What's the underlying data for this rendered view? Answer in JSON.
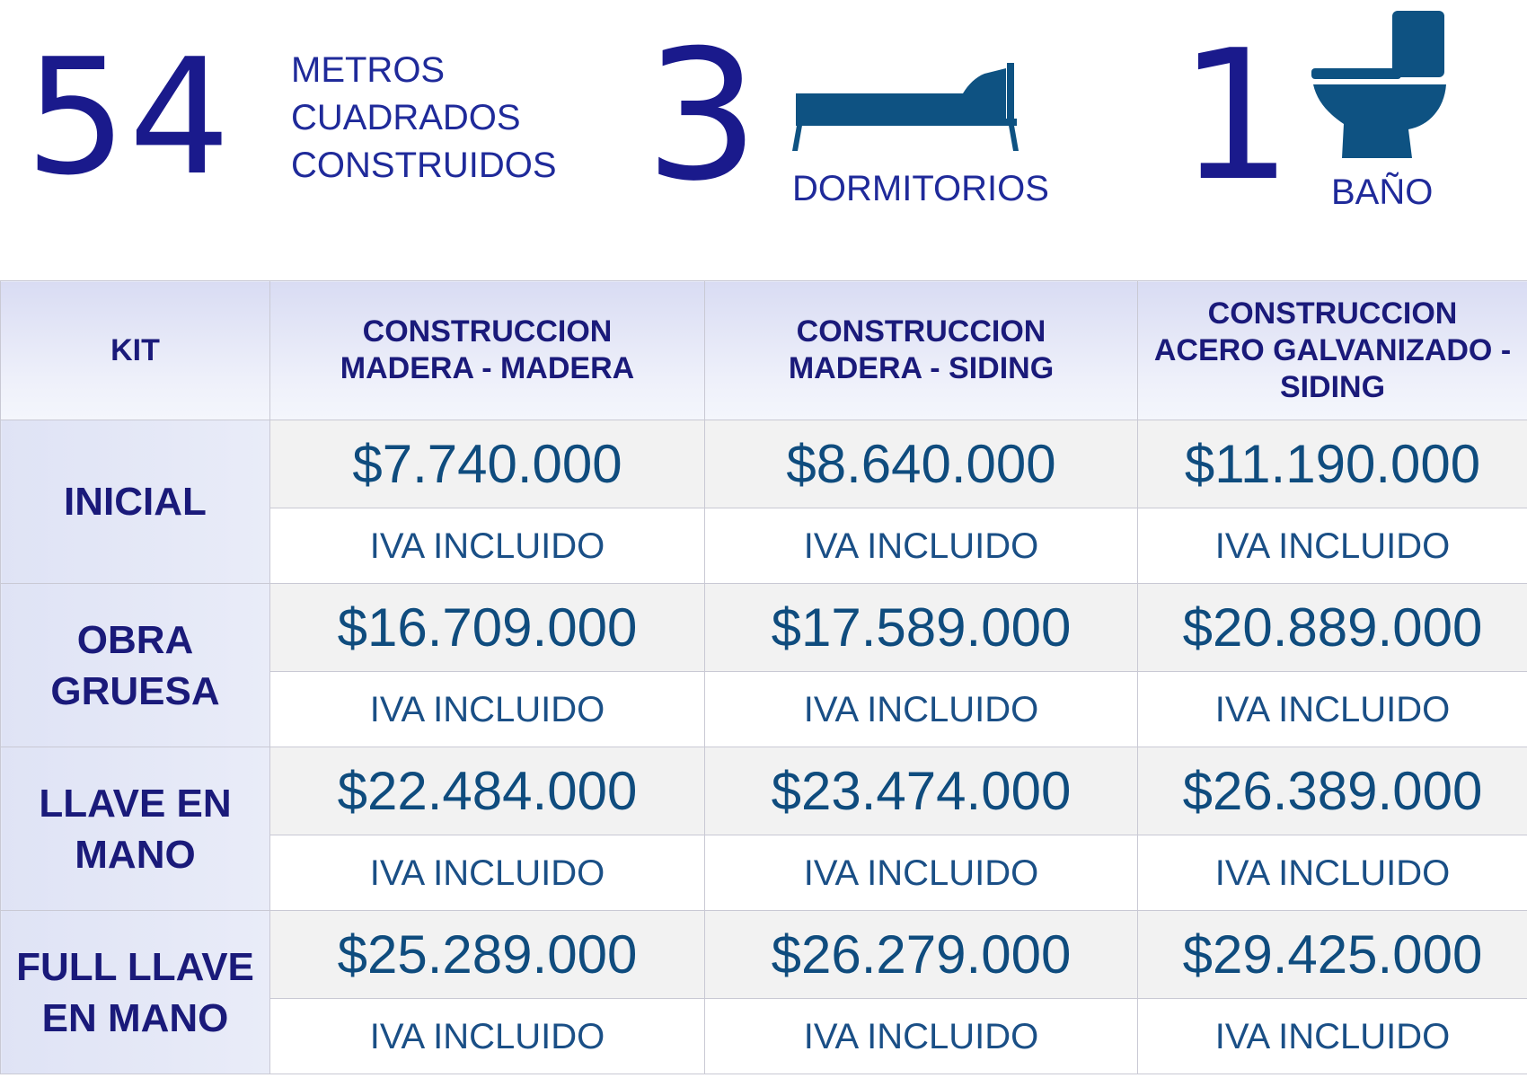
{
  "stats": {
    "area_number": "54",
    "area_label_lines": [
      "METROS",
      "CUADRADOS",
      "CONSTRUIDOS"
    ],
    "bedrooms_number": "3",
    "bedrooms_label": "DORMITORIOS",
    "bedrooms_icon": "bed-icon",
    "bathrooms_number": "1",
    "bathrooms_label": "BAÑO",
    "bathrooms_icon": "toilet-icon"
  },
  "table": {
    "headers": {
      "kit": "KIT",
      "col_a": [
        "CONSTRUCCION",
        "MADERA - MADERA"
      ],
      "col_b": [
        "CONSTRUCCION",
        "MADERA - SIDING"
      ],
      "col_c": [
        "CONSTRUCCION",
        "ACERO GALVANIZADO -",
        "SIDING"
      ]
    },
    "rows": [
      {
        "kit_lines": [
          "INICIAL"
        ],
        "prices": [
          "$7.740.000",
          "$8.640.000",
          "$11.190.000"
        ],
        "tax_notes": [
          "IVA INCLUIDO",
          "IVA INCLUIDO",
          "IVA INCLUIDO"
        ]
      },
      {
        "kit_lines": [
          "OBRA",
          "GRUESA"
        ],
        "prices": [
          "$16.709.000",
          "$17.589.000",
          "$20.889.000"
        ],
        "tax_notes": [
          "IVA INCLUIDO",
          "IVA INCLUIDO",
          "IVA INCLUIDO"
        ]
      },
      {
        "kit_lines": [
          "LLAVE EN",
          "MANO"
        ],
        "prices": [
          "$22.484.000",
          "$23.474.000",
          "$26.389.000"
        ],
        "tax_notes": [
          "IVA INCLUIDO",
          "IVA INCLUIDO",
          "IVA INCLUIDO"
        ]
      },
      {
        "kit_lines": [
          "FULL LLAVE",
          "EN MANO"
        ],
        "prices": [
          "$25.289.000",
          "$26.279.000",
          "$29.425.000"
        ],
        "tax_notes": [
          "IVA INCLUIDO",
          "IVA INCLUIDO",
          "IVA INCLUIDO"
        ]
      }
    ]
  },
  "colors": {
    "number_blue": "#1a1a8c",
    "icon_blue": "#0e5282",
    "price_blue": "#0f4c7e",
    "header_text": "#1a1a7a"
  }
}
